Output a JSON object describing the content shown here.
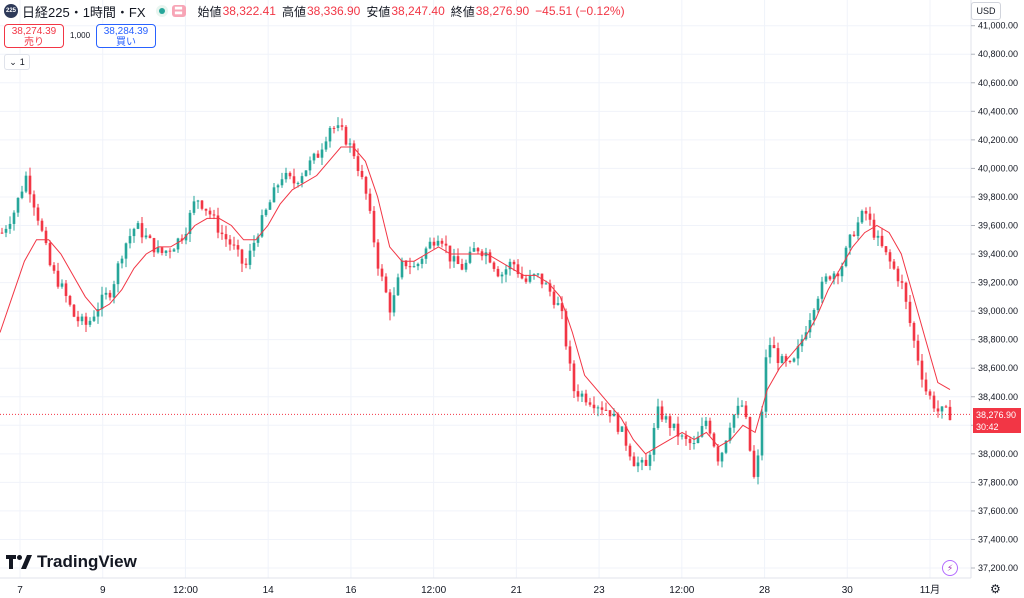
{
  "header": {
    "symbol_badge": "225",
    "title": "日経225・1時間・FX",
    "flag_glyph": "〓",
    "open_label": "始値",
    "open_value": "38,322.41",
    "high_label": "高値",
    "high_value": "38,336.90",
    "low_label": "安値",
    "low_value": "38,247.40",
    "close_label": "終値",
    "close_value": "38,276.90",
    "change_value": "−45.51 (−0.12%)"
  },
  "trade": {
    "sell_price": "38,274.39",
    "sell_label": "売り",
    "buy_price": "38,284.39",
    "buy_label": "買い",
    "quantity": "1,000"
  },
  "interval": {
    "chevron": "⌄",
    "value": "1"
  },
  "currency": "USD",
  "current_price": {
    "value": "38,276.90",
    "countdown": "30:42",
    "color": "#f23645"
  },
  "logo": {
    "text": "TradingView"
  },
  "colors": {
    "up": "#26a69a",
    "down": "#f23645",
    "ma": "#f23645",
    "grid": "#f0f3fa"
  },
  "chart_data": {
    "type": "candlestick",
    "y_ticks": [
      37200,
      37400,
      37600,
      37800,
      38000,
      38200,
      38400,
      38600,
      38800,
      39000,
      39200,
      39400,
      39600,
      39800,
      40000,
      40200,
      40400,
      40600,
      40800,
      41000
    ],
    "y_tick_labels": [
      "37,200.00",
      "37,400.00",
      "37,600.00",
      "37,800.00",
      "38,000.00",
      "38,200.00",
      "38,400.00",
      "38,600.00",
      "38,800.00",
      "39,000.00",
      "39,200.00",
      "39,400.00",
      "39,600.00",
      "39,800.00",
      "40,000.00",
      "40,200.00",
      "40,400.00",
      "40,600.00",
      "40,800.00",
      "41,000.00"
    ],
    "ylim": [
      37130,
      41180
    ],
    "x_tick_labels": [
      "7",
      "9",
      "12:00",
      "14",
      "16",
      "12:00",
      "21",
      "23",
      "12:00",
      "28",
      "30",
      "11月"
    ],
    "close_path": [
      {
        "c": 39550
      },
      {
        "c": 39700
      },
      {
        "c": 39950
      },
      {
        "c": 39650
      },
      {
        "c": 39300
      },
      {
        "c": 39150
      },
      {
        "c": 38950
      },
      {
        "c": 38900
      },
      {
        "c": 39050
      },
      {
        "c": 39150
      },
      {
        "c": 39450
      },
      {
        "c": 39600
      },
      {
        "c": 39500
      },
      {
        "c": 39400
      },
      {
        "c": 39450
      },
      {
        "c": 39550
      },
      {
        "c": 39800
      },
      {
        "c": 39700
      },
      {
        "c": 39550
      },
      {
        "c": 39450
      },
      {
        "c": 39300
      },
      {
        "c": 39550
      },
      {
        "c": 39750
      },
      {
        "c": 39950
      },
      {
        "c": 39900
      },
      {
        "c": 40000
      },
      {
        "c": 40100
      },
      {
        "c": 40300
      },
      {
        "c": 40250
      },
      {
        "c": 40100
      },
      {
        "c": 39800
      },
      {
        "c": 39300
      },
      {
        "c": 39000
      },
      {
        "c": 39350
      },
      {
        "c": 39300
      },
      {
        "c": 39450
      },
      {
        "c": 39550
      },
      {
        "c": 39350
      },
      {
        "c": 39300
      },
      {
        "c": 39450
      },
      {
        "c": 39400
      },
      {
        "c": 39250
      },
      {
        "c": 39350
      },
      {
        "c": 39200
      },
      {
        "c": 39250
      },
      {
        "c": 39150
      },
      {
        "c": 39000
      },
      {
        "c": 38450
      },
      {
        "c": 38400
      },
      {
        "c": 38350
      },
      {
        "c": 38300
      },
      {
        "c": 38150
      },
      {
        "c": 37950
      },
      {
        "c": 37900
      },
      {
        "c": 38300
      },
      {
        "c": 38200
      },
      {
        "c": 38100
      },
      {
        "c": 38050
      },
      {
        "c": 38250
      },
      {
        "c": 37950
      },
      {
        "c": 38250
      },
      {
        "c": 38350
      },
      {
        "c": 37750
      },
      {
        "c": 38800
      },
      {
        "c": 38650
      },
      {
        "c": 38600
      },
      {
        "c": 38850
      },
      {
        "c": 39100
      },
      {
        "c": 39250
      },
      {
        "c": 39300
      },
      {
        "c": 39550
      },
      {
        "c": 39700
      },
      {
        "c": 39500
      },
      {
        "c": 39350
      },
      {
        "c": 39200
      },
      {
        "c": 38800
      },
      {
        "c": 38450
      },
      {
        "c": 38300
      },
      {
        "c": 38280
      }
    ],
    "ma_path": [
      38850,
      39100,
      39350,
      39500,
      39500,
      39400,
      39250,
      39100,
      39000,
      39050,
      39150,
      39300,
      39400,
      39450,
      39450,
      39500,
      39600,
      39650,
      39650,
      39600,
      39500,
      39500,
      39600,
      39750,
      39850,
      39900,
      39950,
      40050,
      40150,
      40150,
      40050,
      39800,
      39450,
      39350,
      39350,
      39400,
      39450,
      39400,
      39400,
      39400,
      39400,
      39350,
      39300,
      39250,
      39250,
      39200,
      39100,
      38850,
      38550,
      38450,
      38350,
      38250,
      38100,
      38000,
      38050,
      38100,
      38150,
      38100,
      38150,
      38050,
      38100,
      38200,
      38150,
      38450,
      38600,
      38700,
      38800,
      38950,
      39150,
      39300,
      39450,
      39550,
      39600,
      39550,
      39400,
      39100,
      38800,
      38500,
      38450
    ]
  }
}
